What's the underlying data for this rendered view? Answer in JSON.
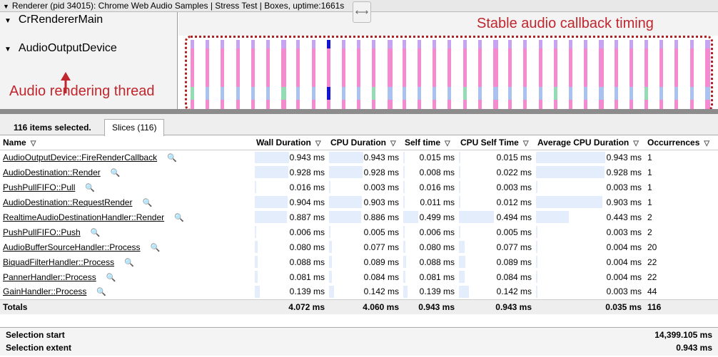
{
  "process_header": "Renderer (pid 34015): Chrome Web Audio Samples | Stress Test | Boxes, uptime:1661s",
  "threads": [
    "CrRendererMain",
    "AudioOutputDevice"
  ],
  "annotations": {
    "thread": "Audio rendering thread",
    "timing": "Stable audio callback timing"
  },
  "colors": {
    "annotation": "#c0262d",
    "slice_top": "#c7a3f2",
    "slice_mid": "#f58ad0",
    "slice_low_blue": "#a9c2f0",
    "slice_low_green": "#94dcb4",
    "slice_selected": "#1414d2",
    "cell_bar": "#e3edfc"
  },
  "bottom_panel": {
    "selected_text": "116 items selected.",
    "tab": "Slices (116)"
  },
  "table": {
    "columns": [
      "Name",
      "Wall Duration",
      "CPU Duration",
      "Self time",
      "CPU Self Time",
      "Average CPU Duration",
      "Occurrences"
    ],
    "rows": [
      [
        "AudioOutputDevice::FireRenderCallback",
        "0.943 ms",
        "0.943 ms",
        "0.015 ms",
        "0.015 ms",
        "0.943 ms",
        "1"
      ],
      [
        "AudioDestination::Render",
        "0.928 ms",
        "0.928 ms",
        "0.008 ms",
        "0.022 ms",
        "0.928 ms",
        "1"
      ],
      [
        "PushPullFIFO::Pull",
        "0.016 ms",
        "0.003 ms",
        "0.016 ms",
        "0.003 ms",
        "0.003 ms",
        "1"
      ],
      [
        "AudioDestination::RequestRender",
        "0.904 ms",
        "0.903 ms",
        "0.011 ms",
        "0.012 ms",
        "0.903 ms",
        "1"
      ],
      [
        "RealtimeAudioDestinationHandler::Render",
        "0.887 ms",
        "0.886 ms",
        "0.499 ms",
        "0.494 ms",
        "0.443 ms",
        "2"
      ],
      [
        "PushPullFIFO::Push",
        "0.006 ms",
        "0.005 ms",
        "0.006 ms",
        "0.005 ms",
        "0.003 ms",
        "2"
      ],
      [
        "AudioBufferSourceHandler::Process",
        "0.080 ms",
        "0.077 ms",
        "0.080 ms",
        "0.077 ms",
        "0.004 ms",
        "20"
      ],
      [
        "BiquadFilterHandler::Process",
        "0.088 ms",
        "0.089 ms",
        "0.088 ms",
        "0.089 ms",
        "0.004 ms",
        "22"
      ],
      [
        "PannerHandler::Process",
        "0.081 ms",
        "0.084 ms",
        "0.081 ms",
        "0.084 ms",
        "0.004 ms",
        "22"
      ],
      [
        "GainHandler::Process",
        "0.139 ms",
        "0.142 ms",
        "0.139 ms",
        "0.142 ms",
        "0.003 ms",
        "44"
      ]
    ],
    "totals": [
      "Totals",
      "4.072 ms",
      "4.060 ms",
      "0.943 ms",
      "0.943 ms",
      "0.035 ms",
      "116"
    ]
  },
  "selection": {
    "start_label": "Selection start",
    "start_value": "14,399.105 ms",
    "extent_label": "Selection extent",
    "extent_value": "0.943 ms"
  }
}
